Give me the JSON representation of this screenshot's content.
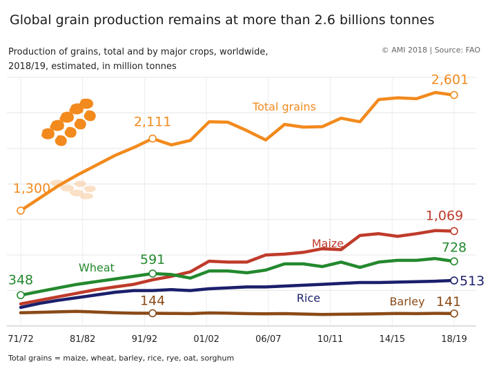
{
  "title": "Global grain production remains at more than 2.6 billions tonnes",
  "subtitle_line1": "Production of grains, total and by major crops, worldwide,",
  "subtitle_line2": "2018/19, estimated, in million tonnes",
  "source": "© AMI 2018 | Source: FAO",
  "footnote": "Total grains = maize, wheat, barley, rice, rye, oat, sorghum",
  "chart_data": {
    "type": "line",
    "x_tick_labels": [
      "71/72",
      "81/82",
      "91/92",
      "01/02",
      "06/07",
      "10/11",
      "14/15",
      "18/19"
    ],
    "ylim": [
      0,
      2800
    ],
    "grid": true,
    "icon": "wheat-ear-icon",
    "series": [
      {
        "name": "Total grains",
        "color": "#f28a1d",
        "values": [
          1300,
          1440,
          1580,
          1700,
          1810,
          1920,
          2010,
          2111,
          2040,
          2090,
          2300,
          2295,
          2200,
          2095,
          2270,
          2240,
          2245,
          2340,
          2300,
          2550,
          2570,
          2560,
          2630,
          2601
        ],
        "start_label": "1,300",
        "mid_label": "2,111",
        "end_label": "2,601"
      },
      {
        "name": "Maize",
        "color": "#bf3b2b",
        "values": [
          250,
          290,
          330,
          370,
          410,
          440,
          470,
          520,
          560,
          610,
          730,
          720,
          720,
          800,
          810,
          830,
          870,
          860,
          1020,
          1040,
          1010,
          1040,
          1075,
          1069
        ],
        "end_label": "1,069"
      },
      {
        "name": "Wheat",
        "color": "#23892e",
        "values": [
          348,
          390,
          430,
          470,
          500,
          530,
          560,
          591,
          580,
          540,
          620,
          620,
          600,
          630,
          700,
          700,
          670,
          720,
          660,
          720,
          740,
          740,
          760,
          728
        ],
        "start_label": "348",
        "mid_label": "591",
        "end_label": "728"
      },
      {
        "name": "Rice",
        "color": "#1b1f6b",
        "values": [
          210,
          255,
          290,
          320,
          350,
          380,
          400,
          400,
          410,
          400,
          420,
          430,
          440,
          440,
          450,
          460,
          470,
          480,
          490,
          490,
          495,
          500,
          505,
          513
        ],
        "end_label": "513"
      },
      {
        "name": "Barley",
        "color": "#8a4a17",
        "values": [
          150,
          155,
          160,
          165,
          158,
          150,
          145,
          144,
          142,
          140,
          148,
          145,
          140,
          138,
          140,
          135,
          130,
          133,
          135,
          138,
          142,
          140,
          143,
          141
        ],
        "mid_label": "144",
        "end_label": "141"
      }
    ]
  }
}
